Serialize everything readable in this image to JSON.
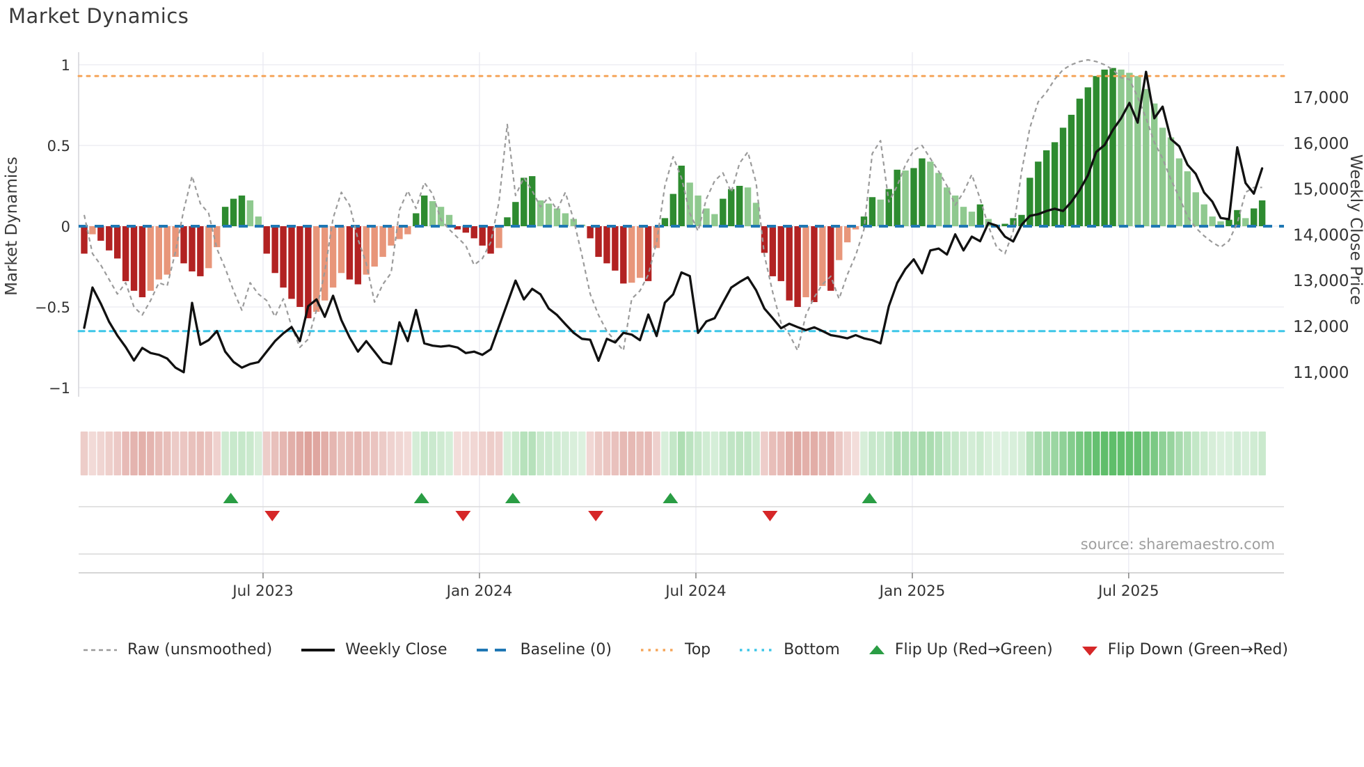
{
  "title": "Market Dynamics",
  "source": "source: sharemaestro.com",
  "left_axis": {
    "label": "Market Dynamics",
    "ticks": [
      "1",
      "0.5",
      "0",
      "−0.5",
      "−1"
    ],
    "tick_values": [
      1,
      0.5,
      0,
      -0.5,
      -1
    ]
  },
  "right_axis": {
    "label": "Weekly Close Price",
    "ticks": [
      "17,000",
      "16,000",
      "15,000",
      "14,000",
      "13,000",
      "12,000",
      "11,000"
    ],
    "tick_values": [
      17000,
      16000,
      15000,
      14000,
      13000,
      12000,
      11000
    ]
  },
  "x_axis": {
    "ticks": [
      "Jul 2023",
      "Jan 2024",
      "Jul 2024",
      "Jan 2025",
      "Jul 2025"
    ],
    "tick_weeks": [
      21.56,
      47.65,
      73.74,
      99.83,
      125.91
    ]
  },
  "legend": {
    "items": [
      {
        "label": "Raw (unsmoothed)",
        "swatch": "dash-gray"
      },
      {
        "label": "Weekly Close",
        "swatch": "solid-black"
      },
      {
        "label": "Baseline (0)",
        "swatch": "dash-blue"
      },
      {
        "label": "Top",
        "swatch": "dot-orange"
      },
      {
        "label": "Bottom",
        "swatch": "dot-cyan"
      },
      {
        "label": "Flip Up (Red→Green)",
        "swatch": "tri-up"
      },
      {
        "label": "Flip Down (Green→Red)",
        "swatch": "tri-down"
      }
    ]
  },
  "colors": {
    "bar_dark_green": "#2e8b30",
    "bar_light_green": "#8fc98f",
    "bar_dark_red": "#b22222",
    "bar_salmon": "#e8967a",
    "raw_line": "#9b9b9b",
    "price_line": "#111111",
    "baseline": "#1f77b4",
    "top_line": "#f5a55a",
    "bottom_line": "#3dc6e8",
    "flip_up": "#2a9d44",
    "flip_down": "#d62728",
    "grid": "#e9e9f1",
    "spine": "#cfcfd6",
    "panel_line": "#d9d9d9",
    "axis_line": "#c9c9c9"
  },
  "chart_data": {
    "type": "bar",
    "description": "Weekly momentum oscillator bars with raw overlay, weekly close price line, sign heat-strip and flip markers. 143 weekly points, Feb 2023 - Oct 2025.",
    "ylim": [
      -1.05,
      1.08
    ],
    "price_ylim": [
      10600,
      17800
    ],
    "baseline": 0,
    "top_threshold": 0.93,
    "bottom_threshold": -0.65,
    "grid": true,
    "legend_position": "bottom",
    "oscillator": [
      -0.17,
      -0.05,
      -0.09,
      -0.15,
      -0.2,
      -0.34,
      -0.4,
      -0.44,
      -0.4,
      -0.33,
      -0.3,
      -0.19,
      -0.23,
      -0.28,
      -0.31,
      -0.26,
      -0.13,
      0.12,
      0.17,
      0.19,
      0.16,
      0.06,
      -0.17,
      -0.29,
      -0.38,
      -0.45,
      -0.5,
      -0.57,
      -0.53,
      -0.46,
      -0.38,
      -0.29,
      -0.33,
      -0.36,
      -0.3,
      -0.25,
      -0.19,
      -0.12,
      -0.08,
      -0.05,
      0.08,
      0.19,
      0.155,
      0.12,
      0.07,
      -0.02,
      -0.04,
      -0.075,
      -0.12,
      -0.17,
      -0.135,
      0.055,
      0.15,
      0.3,
      0.31,
      0.16,
      0.14,
      0.11,
      0.08,
      0.045,
      0.01,
      -0.075,
      -0.19,
      -0.23,
      -0.275,
      -0.355,
      -0.35,
      -0.32,
      -0.34,
      -0.135,
      0.05,
      0.2,
      0.375,
      0.27,
      0.19,
      0.11,
      0.075,
      0.17,
      0.23,
      0.25,
      0.24,
      0.145,
      -0.165,
      -0.31,
      -0.34,
      -0.46,
      -0.5,
      -0.44,
      -0.47,
      -0.37,
      -0.4,
      -0.21,
      -0.1,
      -0.02,
      0.06,
      0.18,
      0.165,
      0.23,
      0.35,
      0.345,
      0.36,
      0.42,
      0.4,
      0.33,
      0.24,
      0.19,
      0.12,
      0.09,
      0.135,
      0.045,
      0.01,
      0.015,
      0.05,
      0.07,
      0.3,
      0.4,
      0.47,
      0.52,
      0.61,
      0.69,
      0.79,
      0.86,
      0.93,
      0.97,
      0.98,
      0.97,
      0.95,
      0.93,
      0.85,
      0.76,
      0.61,
      0.55,
      0.42,
      0.34,
      0.21,
      0.135,
      0.06,
      0.03,
      0.04,
      0.1,
      0.05,
      0.11,
      0.16
    ],
    "raw": [
      0.07,
      -0.17,
      -0.24,
      -0.33,
      -0.42,
      -0.35,
      -0.5,
      -0.55,
      -0.46,
      -0.35,
      -0.37,
      -0.16,
      0.1,
      0.31,
      0.14,
      0.08,
      -0.14,
      -0.26,
      -0.4,
      -0.52,
      -0.35,
      -0.42,
      -0.46,
      -0.56,
      -0.45,
      -0.62,
      -0.75,
      -0.7,
      -0.52,
      -0.28,
      0.05,
      0.21,
      0.13,
      -0.08,
      -0.23,
      -0.47,
      -0.36,
      -0.29,
      0.1,
      0.22,
      0.11,
      0.27,
      0.2,
      0.04,
      -0.02,
      -0.07,
      -0.12,
      -0.24,
      -0.2,
      -0.1,
      0.15,
      0.63,
      0.19,
      0.3,
      0.22,
      0.12,
      0.18,
      0.1,
      0.21,
      0.04,
      -0.18,
      -0.42,
      -0.55,
      -0.65,
      -0.71,
      -0.77,
      -0.45,
      -0.4,
      -0.3,
      -0.1,
      0.25,
      0.43,
      0.3,
      0.08,
      -0.03,
      0.17,
      0.28,
      0.33,
      0.21,
      0.39,
      0.46,
      0.27,
      -0.18,
      -0.41,
      -0.6,
      -0.67,
      -0.77,
      -0.55,
      -0.44,
      -0.36,
      -0.31,
      -0.45,
      -0.3,
      -0.18,
      -0.02,
      0.45,
      0.53,
      0.15,
      0.25,
      0.38,
      0.47,
      0.5,
      0.42,
      0.34,
      0.25,
      0.13,
      0.21,
      0.32,
      0.17,
      0.0,
      -0.13,
      -0.17,
      -0.03,
      0.34,
      0.61,
      0.77,
      0.83,
      0.91,
      0.97,
      1.0,
      1.02,
      1.03,
      1.02,
      1.0,
      0.97,
      0.92,
      0.91,
      0.8,
      0.67,
      0.52,
      0.42,
      0.29,
      0.18,
      0.06,
      -0.01,
      -0.06,
      -0.1,
      -0.13,
      -0.09,
      0.02,
      0.21,
      0.24,
      0.24
    ],
    "price": [
      11970,
      12850,
      12500,
      12100,
      11800,
      11550,
      11255,
      11530,
      11420,
      11380,
      11300,
      11100,
      11000,
      12515,
      11600,
      11700,
      11900,
      11450,
      11225,
      11100,
      11180,
      11220,
      11450,
      11680,
      11850,
      11985,
      11680,
      12440,
      12590,
      12210,
      12670,
      12140,
      11760,
      11450,
      11680,
      11450,
      11220,
      11180,
      12090,
      11680,
      12360,
      11630,
      11580,
      11560,
      11580,
      11540,
      11420,
      11450,
      11380,
      11500,
      12000,
      12500,
      13000,
      12590,
      12820,
      12700,
      12390,
      12250,
      12050,
      11860,
      11730,
      11710,
      11250,
      11730,
      11650,
      11860,
      11820,
      11700,
      12260,
      11790,
      12520,
      12700,
      13180,
      13100,
      11860,
      12110,
      12180,
      12520,
      12850,
      12970,
      13075,
      12790,
      12390,
      12180,
      11960,
      12060,
      11985,
      11920,
      11980,
      11900,
      11810,
      11780,
      11740,
      11810,
      11740,
      11700,
      11630,
      12440,
      12950,
      13255,
      13465,
      13160,
      13660,
      13700,
      13570,
      14010,
      13660,
      13960,
      13860,
      14260,
      14200,
      13960,
      13855,
      14220,
      14415,
      14450,
      14520,
      14570,
      14520,
      14720,
      14975,
      15300,
      15810,
      15960,
      16290,
      16545,
      16880,
      16450,
      17560,
      16545,
      16800,
      16090,
      15935,
      15530,
      15330,
      14925,
      14725,
      14370,
      14340,
      15910,
      15130,
      14900,
      15450
    ],
    "flip_up_weeks": [
      17,
      40,
      51,
      70,
      94
    ],
    "flip_down_weeks": [
      22,
      45,
      61,
      82
    ]
  }
}
